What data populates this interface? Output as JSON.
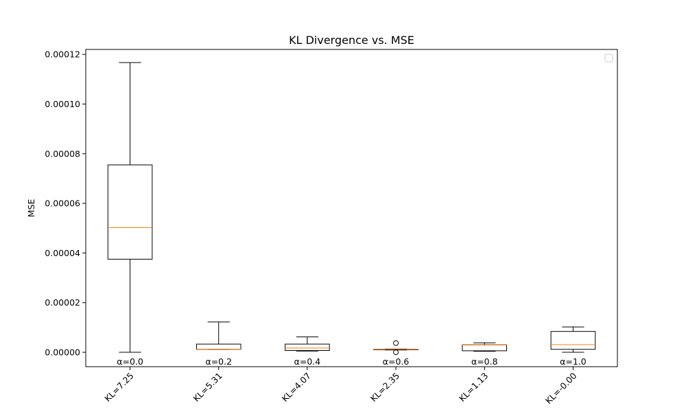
{
  "chart_data": {
    "type": "box",
    "title": "KL Divergence vs. MSE",
    "xlabel": "",
    "ylabel": "MSE",
    "ylim": [
      -5.8e-06,
      0.000122
    ],
    "yticks": [
      0.0,
      2e-05,
      4e-05,
      6e-05,
      8e-05,
      0.0001,
      0.00012
    ],
    "ytick_labels": [
      "0.00000",
      "0.00002",
      "0.00004",
      "0.00006",
      "0.00008",
      "0.00010",
      "0.00012"
    ],
    "grid": false,
    "legend": "top-right (empty)",
    "categories": [
      "KL=7.25",
      "KL=5.31",
      "KL=4.07",
      "KL=2.35",
      "KL=1.13",
      "KL=-0.00"
    ],
    "annotations": [
      "α=0.0",
      "α=0.2",
      "α=0.4",
      "α=0.6",
      "α=0.8",
      "α=1.0"
    ],
    "boxes": [
      {
        "whisker_low": 0.0,
        "q1": 3.75e-05,
        "median": 5.02e-05,
        "q3": 7.55e-05,
        "whisker_high": 0.0001167,
        "outliers": []
      },
      {
        "whisker_low": 1.2e-06,
        "q1": 1.2e-06,
        "median": 1.2e-06,
        "q3": 3.3e-06,
        "whisker_high": 1.22e-05,
        "outliers": []
      },
      {
        "whisker_low": 5e-07,
        "q1": 7e-07,
        "median": 1.7e-06,
        "q3": 3.3e-06,
        "whisker_high": 6.2e-06,
        "outliers": []
      },
      {
        "whisker_low": 9e-07,
        "q1": 1e-06,
        "median": 1.1e-06,
        "q3": 1.2e-06,
        "whisker_high": 1.3e-06,
        "outliers": [
          3.7e-06,
          0.0
        ]
      },
      {
        "whisker_low": 4e-07,
        "q1": 6e-07,
        "median": 2.9e-06,
        "q3": 3e-06,
        "whisker_high": 3.8e-06,
        "outliers": []
      },
      {
        "whisker_low": 0.0,
        "q1": 1.2e-06,
        "median": 3.1e-06,
        "q3": 8.4e-06,
        "whisker_high": 1.02e-05,
        "outliers": []
      }
    ],
    "colors": {
      "box": "#000000",
      "median": "#ff7f0e",
      "background": "#ffffff"
    }
  }
}
